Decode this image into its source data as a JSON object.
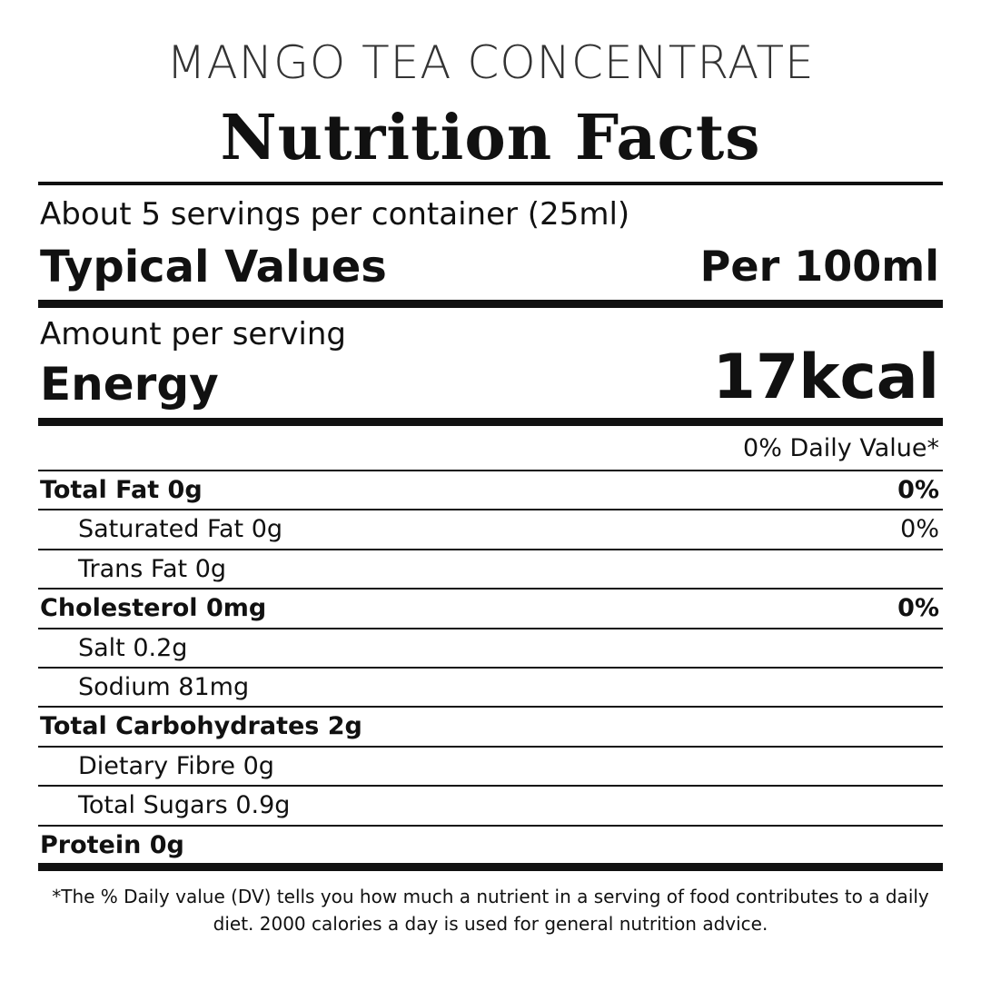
{
  "product_name": "MANGO TEA CONCENTRATE",
  "title": "Nutrition Facts",
  "servings": "About 5 servings per container (25ml)",
  "typical_values": "Typical Values",
  "per": "Per 100ml",
  "amount_per_serving": "Amount per serving",
  "energy_label": "Energy",
  "energy_value": "17kcal",
  "daily_value_header": "0% Daily Value*",
  "rows": [
    {
      "label": "Total Fat 0g",
      "dv": "0%",
      "bold": true
    },
    {
      "label": "Saturated Fat 0g",
      "dv": "0%"
    },
    {
      "label": "Trans Fat 0g",
      "dv": ""
    },
    {
      "label": "Cholesterol 0mg",
      "dv": "0%",
      "bold": true
    },
    {
      "label": "Salt 0.2g",
      "dv": ""
    },
    {
      "label": "Sodium 81mg",
      "dv": ""
    },
    {
      "label": "Total Carbohydrates 2g",
      "dv": "",
      "bold": true
    },
    {
      "label": "Dietary Fibre 0g",
      "dv": ""
    },
    {
      "label": "Total Sugars 0.9g",
      "dv": ""
    },
    {
      "label": "Protein 0g",
      "dv": "",
      "bold": true
    }
  ],
  "footnote": "*The % Daily value (DV) tells you how much a nutrient in a serving of food contributes to a daily diet. 2000 calories a day is used for general nutrition advice."
}
